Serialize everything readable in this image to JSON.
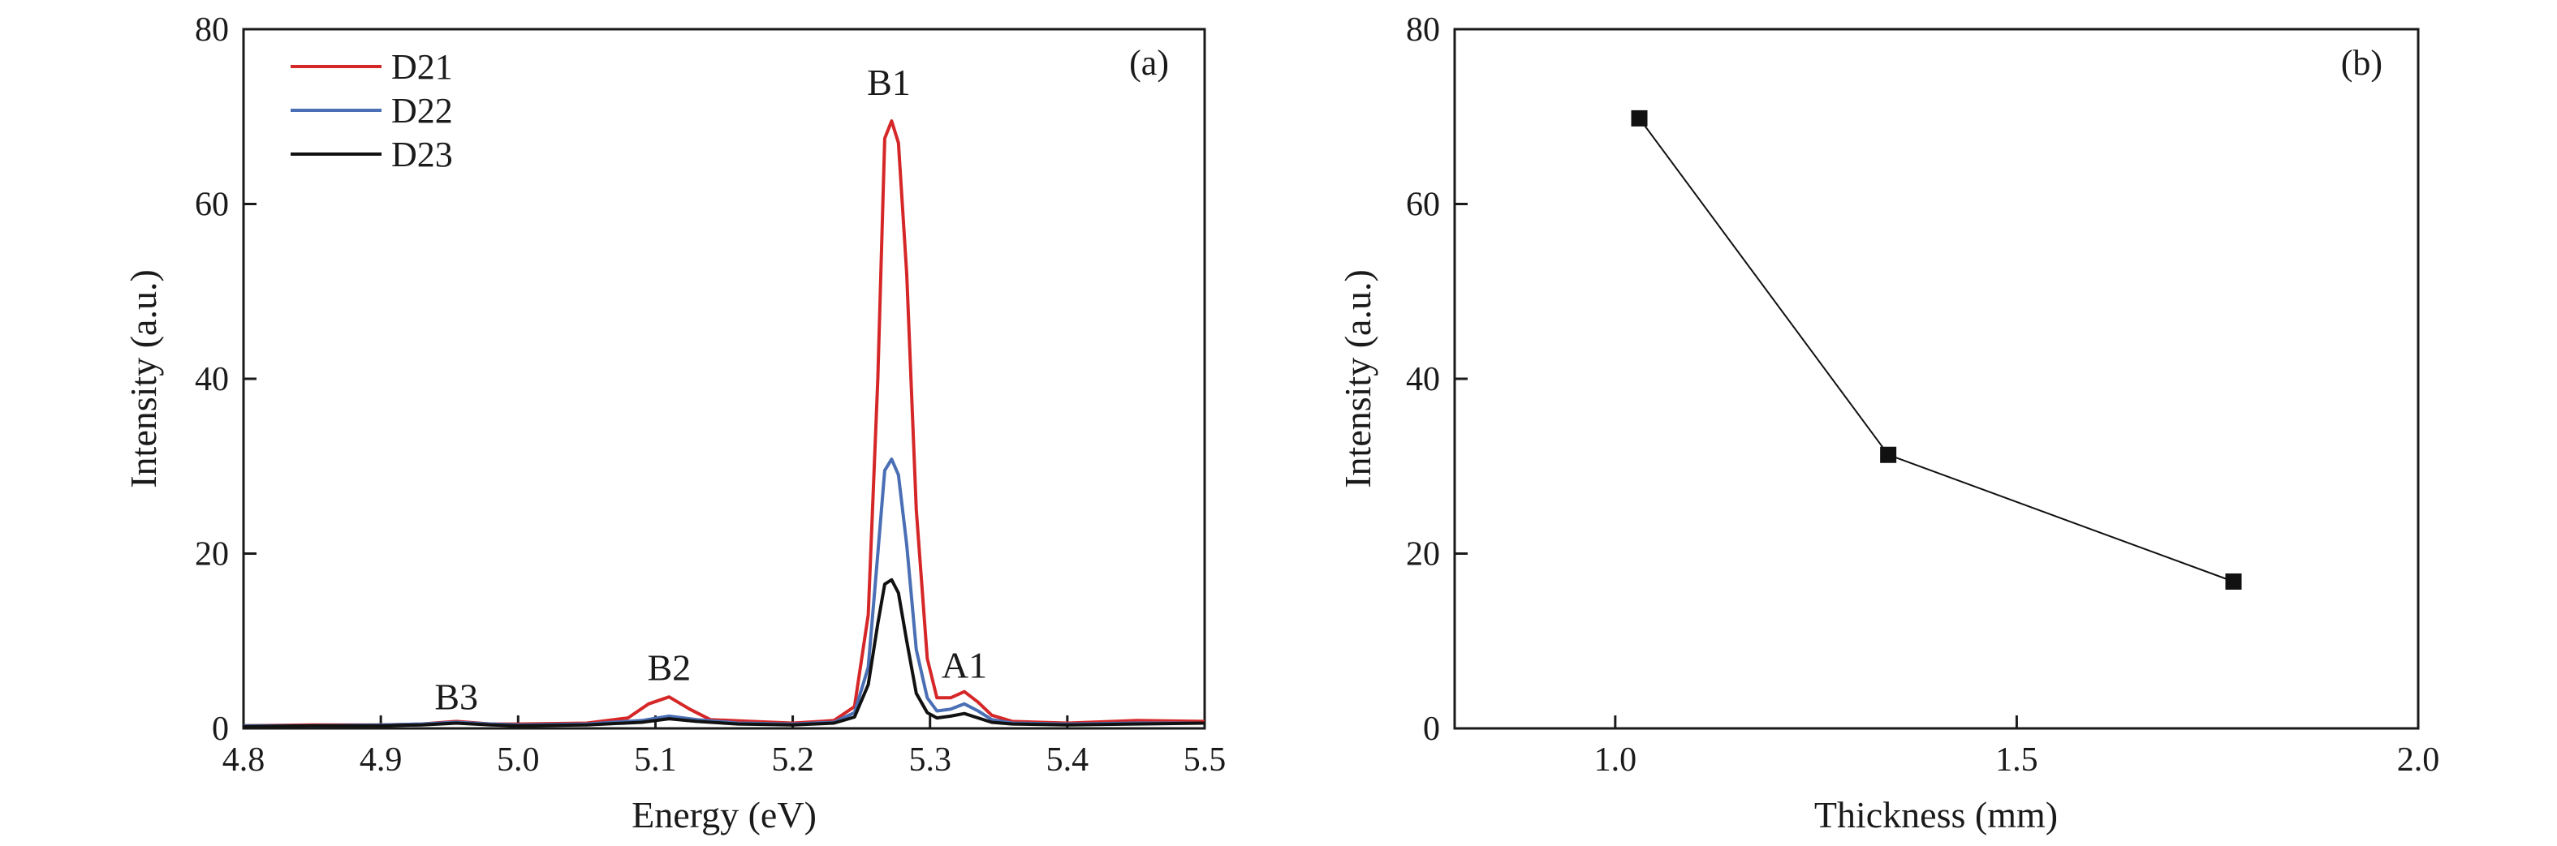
{
  "chart_data": [
    {
      "type": "line",
      "panel_label": "(a)",
      "xlabel": "Energy (eV)",
      "ylabel": "Intensity (a.u.)",
      "xlim": [
        4.8,
        5.5
      ],
      "ylim": [
        0,
        80
      ],
      "xticks": [
        4.8,
        4.9,
        5.0,
        5.1,
        5.2,
        5.3,
        5.4,
        5.5
      ],
      "xtick_labels": [
        "4.8",
        "4.9",
        "5.0",
        "5.1",
        "5.2",
        "5.3",
        "5.4",
        "5.5"
      ],
      "yticks": [
        0,
        20,
        40,
        60,
        80
      ],
      "ytick_labels": [
        "0",
        "20",
        "40",
        "60",
        "80"
      ],
      "legend_position": "top-left",
      "grid": false,
      "series": [
        {
          "name": "D21",
          "color": "#d62728",
          "x": [
            4.8,
            4.85,
            4.9,
            4.93,
            4.955,
            4.98,
            5.0,
            5.05,
            5.08,
            5.095,
            5.11,
            5.125,
            5.14,
            5.17,
            5.2,
            5.23,
            5.245,
            5.255,
            5.262,
            5.267,
            5.272,
            5.277,
            5.283,
            5.29,
            5.298,
            5.305,
            5.315,
            5.325,
            5.335,
            5.345,
            5.36,
            5.4,
            5.45,
            5.5
          ],
          "y": [
            0.3,
            0.4,
            0.4,
            0.5,
            0.8,
            0.5,
            0.5,
            0.6,
            1.2,
            2.8,
            3.6,
            2.2,
            1.0,
            0.8,
            0.6,
            0.9,
            2.5,
            13.0,
            40.0,
            67.5,
            69.5,
            67.0,
            52.0,
            25.0,
            8.0,
            3.5,
            3.5,
            4.2,
            3.0,
            1.5,
            0.8,
            0.6,
            0.9,
            0.8
          ]
        },
        {
          "name": "D22",
          "color": "#4a6fb5",
          "x": [
            4.8,
            4.85,
            4.9,
            4.93,
            4.955,
            4.98,
            5.0,
            5.05,
            5.09,
            5.11,
            5.13,
            5.16,
            5.2,
            5.23,
            5.245,
            5.255,
            5.262,
            5.267,
            5.272,
            5.277,
            5.283,
            5.29,
            5.298,
            5.305,
            5.315,
            5.325,
            5.335,
            5.345,
            5.36,
            5.4,
            5.45,
            5.5
          ],
          "y": [
            0.3,
            0.3,
            0.4,
            0.5,
            0.7,
            0.5,
            0.4,
            0.5,
            0.9,
            1.4,
            1.0,
            0.6,
            0.5,
            0.7,
            1.8,
            7.0,
            20.0,
            29.5,
            30.8,
            29.0,
            21.0,
            9.0,
            3.5,
            2.0,
            2.2,
            2.8,
            2.0,
            1.0,
            0.6,
            0.5,
            0.6,
            0.6
          ]
        },
        {
          "name": "D23",
          "color": "#111111",
          "x": [
            4.8,
            4.85,
            4.9,
            4.93,
            4.955,
            4.98,
            5.0,
            5.05,
            5.09,
            5.11,
            5.13,
            5.16,
            5.2,
            5.23,
            5.245,
            5.255,
            5.262,
            5.267,
            5.272,
            5.277,
            5.283,
            5.29,
            5.298,
            5.305,
            5.315,
            5.325,
            5.335,
            5.345,
            5.36,
            5.4,
            5.45,
            5.5
          ],
          "y": [
            0.2,
            0.3,
            0.3,
            0.4,
            0.6,
            0.4,
            0.3,
            0.4,
            0.7,
            1.1,
            0.8,
            0.5,
            0.4,
            0.6,
            1.3,
            5.0,
            12.0,
            16.5,
            17.0,
            15.5,
            10.0,
            4.0,
            1.8,
            1.2,
            1.4,
            1.7,
            1.2,
            0.7,
            0.5,
            0.4,
            0.5,
            0.6
          ]
        }
      ],
      "annotations": [
        {
          "text": "B3",
          "x": 4.955,
          "y": 2.2
        },
        {
          "text": "B2",
          "x": 5.11,
          "y": 5.5
        },
        {
          "text": "B1",
          "x": 5.27,
          "y": 72.5
        },
        {
          "text": "A1",
          "x": 5.325,
          "y": 5.8
        }
      ]
    },
    {
      "type": "line",
      "panel_label": "(b)",
      "xlabel": "Thickness (mm)",
      "ylabel": "Intensity (a.u.)",
      "xlim": [
        0.8,
        2.0
      ],
      "ylim": [
        0,
        80
      ],
      "xticks": [
        1.0,
        1.5,
        2.0
      ],
      "xtick_labels": [
        "1.0",
        "1.5",
        "2.0"
      ],
      "yticks": [
        0,
        20,
        40,
        60,
        80
      ],
      "ytick_labels": [
        "0",
        "20",
        "40",
        "60",
        "80"
      ],
      "grid": false,
      "marker": "square",
      "series": [
        {
          "color": "#111111",
          "x": [
            1.03,
            1.34,
            1.77
          ],
          "y": [
            69.8,
            31.3,
            16.8
          ]
        }
      ]
    }
  ]
}
